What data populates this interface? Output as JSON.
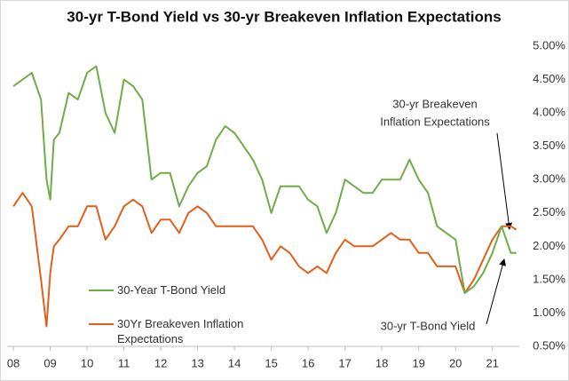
{
  "chart_data": {
    "type": "line",
    "title": "30-yr T-Bond Yield vs 30-yr Breakeven Inflation Expectations",
    "x": [
      2008.0,
      2008.25,
      2008.5,
      2008.75,
      2008.9,
      2009.0,
      2009.1,
      2009.25,
      2009.5,
      2009.75,
      2010.0,
      2010.25,
      2010.5,
      2010.75,
      2011.0,
      2011.25,
      2011.5,
      2011.75,
      2012.0,
      2012.25,
      2012.5,
      2012.75,
      2013.0,
      2013.25,
      2013.5,
      2013.75,
      2014.0,
      2014.25,
      2014.5,
      2014.75,
      2015.0,
      2015.25,
      2015.5,
      2015.75,
      2016.0,
      2016.25,
      2016.5,
      2016.75,
      2017.0,
      2017.25,
      2017.5,
      2017.75,
      2018.0,
      2018.25,
      2018.5,
      2018.75,
      2019.0,
      2019.25,
      2019.5,
      2019.75,
      2020.0,
      2020.25,
      2020.5,
      2020.75,
      2021.0,
      2021.25,
      2021.5,
      2021.65
    ],
    "series": [
      {
        "name": "30-Year T-Bond Yield",
        "color": "#70ad47",
        "values": [
          4.4,
          4.5,
          4.6,
          4.2,
          3.0,
          2.7,
          3.6,
          3.7,
          4.3,
          4.2,
          4.6,
          4.7,
          4.0,
          3.7,
          4.5,
          4.4,
          4.2,
          3.0,
          3.1,
          3.1,
          2.6,
          2.9,
          3.1,
          3.2,
          3.6,
          3.8,
          3.7,
          3.5,
          3.3,
          3.0,
          2.5,
          2.9,
          2.9,
          2.9,
          2.7,
          2.6,
          2.2,
          2.5,
          3.0,
          2.9,
          2.8,
          2.8,
          3.0,
          3.0,
          3.0,
          3.3,
          3.0,
          2.8,
          2.3,
          2.2,
          2.1,
          1.3,
          1.4,
          1.6,
          1.9,
          2.3,
          1.9,
          1.9
        ]
      },
      {
        "name": "30Yr Breakeven Inflation Expectations",
        "color": "#e0601c",
        "values": [
          2.6,
          2.8,
          2.6,
          1.5,
          0.8,
          1.6,
          2.0,
          2.1,
          2.3,
          2.3,
          2.6,
          2.6,
          2.1,
          2.3,
          2.6,
          2.7,
          2.6,
          2.2,
          2.4,
          2.4,
          2.2,
          2.5,
          2.6,
          2.5,
          2.3,
          2.3,
          2.3,
          2.3,
          2.3,
          2.1,
          1.8,
          2.0,
          1.9,
          1.7,
          1.6,
          1.7,
          1.6,
          1.9,
          2.1,
          2.0,
          2.0,
          2.0,
          2.1,
          2.2,
          2.1,
          2.1,
          1.9,
          1.9,
          1.7,
          1.7,
          1.7,
          1.3,
          1.5,
          1.8,
          2.1,
          2.3,
          2.3,
          2.25
        ]
      }
    ],
    "xlim": [
      2007.83,
      2021.73
    ],
    "xticks": [
      {
        "value": 2008,
        "label": "08"
      },
      {
        "value": 2009,
        "label": "09"
      },
      {
        "value": 2010,
        "label": "10"
      },
      {
        "value": 2011,
        "label": "11"
      },
      {
        "value": 2012,
        "label": "12"
      },
      {
        "value": 2013,
        "label": "13"
      },
      {
        "value": 2014,
        "label": "14"
      },
      {
        "value": 2015,
        "label": "15"
      },
      {
        "value": 2016,
        "label": "16"
      },
      {
        "value": 2017,
        "label": "17"
      },
      {
        "value": 2018,
        "label": "18"
      },
      {
        "value": 2019,
        "label": "19"
      },
      {
        "value": 2020,
        "label": "20"
      },
      {
        "value": 2021,
        "label": "21"
      }
    ],
    "ylim": [
      0.5,
      5.0
    ],
    "yticks": [
      {
        "value": 0.5,
        "label": "0.50%"
      },
      {
        "value": 1.0,
        "label": "1.00%"
      },
      {
        "value": 1.5,
        "label": "1.50%"
      },
      {
        "value": 2.0,
        "label": "2.00%"
      },
      {
        "value": 2.5,
        "label": "2.50%"
      },
      {
        "value": 3.0,
        "label": "3.00%"
      },
      {
        "value": 3.5,
        "label": "3.50%"
      },
      {
        "value": 4.0,
        "label": "4.00%"
      },
      {
        "value": 4.5,
        "label": "4.50%"
      },
      {
        "value": 5.0,
        "label": "5.00%"
      }
    ],
    "annotations": [
      {
        "lines": [
          "30-yr Breakeven",
          "Inflation Expectations"
        ]
      },
      {
        "lines": [
          "30-yr T-Bond Yield"
        ]
      }
    ]
  }
}
